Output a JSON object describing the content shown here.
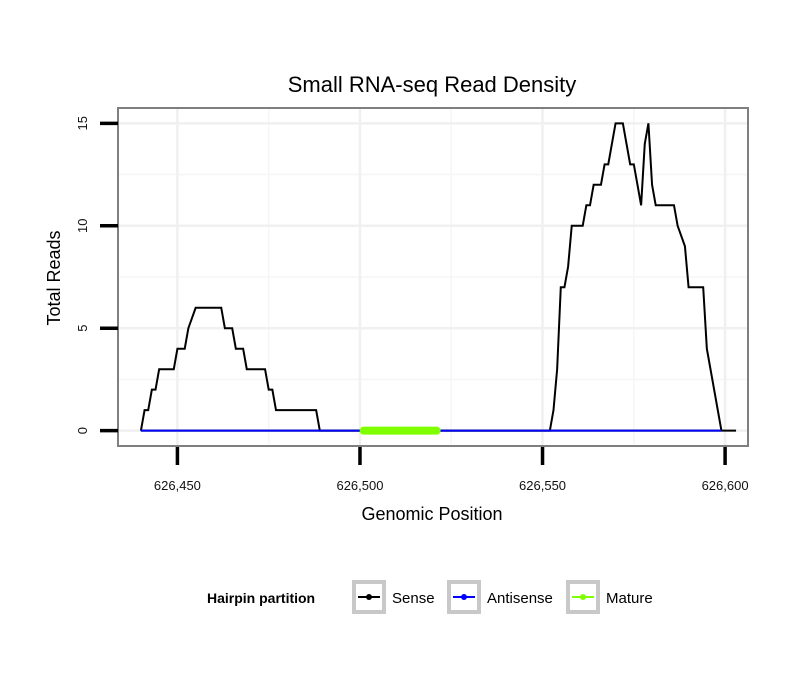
{
  "chart_data": {
    "type": "line",
    "title": "Small RNA-seq Read Density",
    "xlabel": "Genomic Position",
    "ylabel": "Total Reads",
    "xlim": [
      626434,
      626606
    ],
    "ylim": [
      -0.7,
      15.7
    ],
    "xticks": [
      626450,
      626500,
      626550,
      626600
    ],
    "xtick_labels": [
      "626,450",
      "626,500",
      "626,550",
      "626,600"
    ],
    "yticks": [
      0,
      5,
      10,
      15
    ],
    "ytick_labels": [
      "0",
      "5",
      "10",
      "15"
    ],
    "grid": true,
    "legend": {
      "title": "Hairpin partition",
      "position": "bottom",
      "entries": [
        {
          "name": "Sense",
          "color": "#000000"
        },
        {
          "name": "Antisense",
          "color": "#0000ff"
        },
        {
          "name": "Mature",
          "color": "#7fff00"
        }
      ]
    },
    "series": [
      {
        "name": "Sense",
        "color": "#000000",
        "x": [
          626440,
          626441,
          626442,
          626443,
          626444,
          626445,
          626446,
          626449,
          626450,
          626452,
          626453,
          626455,
          626460,
          626462,
          626463,
          626465,
          626466,
          626468,
          626469,
          626472,
          626474,
          626475,
          626476,
          626477,
          626478,
          626487,
          626488,
          626489,
          626552,
          626553,
          626554,
          626555,
          626556,
          626557,
          626558,
          626559,
          626561,
          626562,
          626563,
          626564,
          626565,
          626566,
          626567,
          626568,
          626569,
          626570,
          626571,
          626572,
          626573,
          626574,
          626575,
          626576,
          626577,
          626578,
          626579,
          626580,
          626581,
          626584,
          626585,
          626586,
          626587,
          626589,
          626590,
          626591,
          626592,
          626593,
          626594,
          626595,
          626596,
          626599
        ],
        "y": [
          0,
          1,
          1,
          2,
          2,
          3,
          3,
          3,
          4,
          4,
          5,
          6,
          6,
          6,
          5,
          5,
          4,
          4,
          3,
          3,
          3,
          2,
          2,
          1,
          1,
          1,
          1,
          0,
          0,
          1,
          3,
          7,
          7,
          8,
          10,
          10,
          10,
          11,
          11,
          12,
          12,
          12,
          13,
          13,
          14,
          15,
          15,
          15,
          14,
          13,
          13,
          12,
          11,
          14,
          15,
          12,
          11,
          11,
          11,
          11,
          10,
          9,
          7,
          7,
          7,
          7,
          7,
          4,
          3,
          0
        ]
      },
      {
        "name": "Antisense",
        "color": "#0000ff",
        "x": [
          626440,
          626599
        ],
        "y": [
          0,
          0
        ]
      },
      {
        "name": "Mature",
        "color": "#7fff00",
        "x": [
          626501,
          626521
        ],
        "y": [
          0,
          0
        ]
      }
    ],
    "baseline": {
      "x": [
        626440,
        626603
      ],
      "y": [
        0,
        0
      ],
      "color": "#000000"
    }
  }
}
